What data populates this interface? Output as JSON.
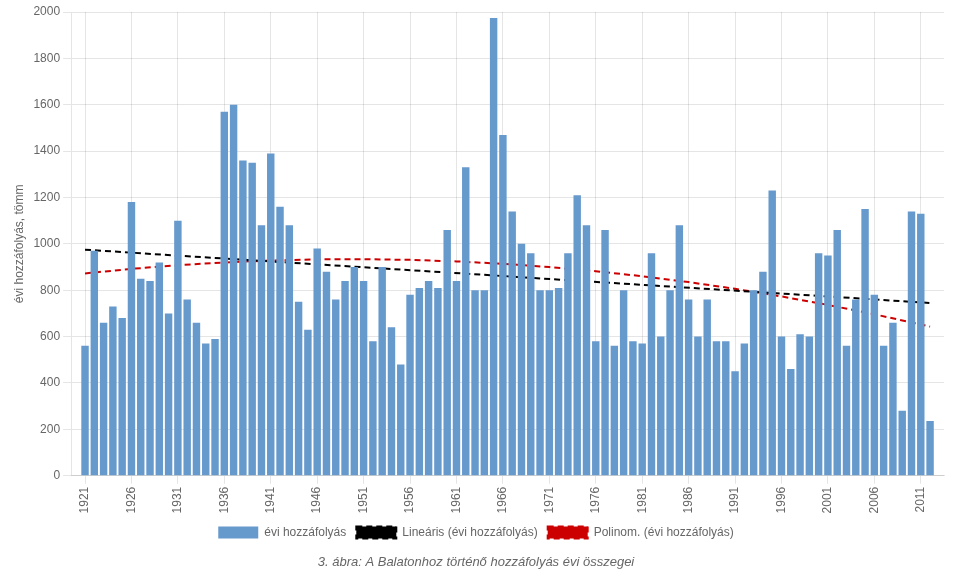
{
  "chart_data": {
    "type": "bar",
    "ylabel": "évi hozzáfolyás, tömm",
    "caption": "3. ábra: A Balatonhoz történő hozzáfolyás évi összegei",
    "x": [
      1921,
      1922,
      1923,
      1924,
      1925,
      1926,
      1927,
      1928,
      1929,
      1930,
      1931,
      1932,
      1933,
      1934,
      1935,
      1936,
      1937,
      1938,
      1939,
      1940,
      1941,
      1942,
      1943,
      1944,
      1945,
      1946,
      1947,
      1948,
      1949,
      1950,
      1951,
      1952,
      1953,
      1954,
      1955,
      1956,
      1957,
      1958,
      1959,
      1960,
      1961,
      1962,
      1963,
      1964,
      1965,
      1966,
      1967,
      1968,
      1969,
      1970,
      1971,
      1972,
      1973,
      1974,
      1975,
      1976,
      1977,
      1978,
      1979,
      1980,
      1981,
      1982,
      1983,
      1984,
      1985,
      1986,
      1987,
      1988,
      1989,
      1990,
      1991,
      1992,
      1993,
      1994,
      1995,
      1996,
      1997,
      1998,
      1999,
      2000,
      2001,
      2002,
      2003,
      2004,
      2005,
      2006,
      2007,
      2008,
      2009,
      2010,
      2011,
      2012
    ],
    "series": [
      {
        "name": "évi hozzáfolyás",
        "type": "bar",
        "color": "#6699cc",
        "values": [
          560,
          970,
          660,
          730,
          680,
          1180,
          850,
          840,
          920,
          700,
          1100,
          760,
          660,
          570,
          590,
          1570,
          1600,
          1360,
          1350,
          1080,
          1390,
          1160,
          1080,
          750,
          630,
          980,
          880,
          760,
          840,
          900,
          840,
          580,
          900,
          640,
          480,
          780,
          810,
          840,
          810,
          1060,
          840,
          1330,
          800,
          800,
          1974,
          1470,
          1140,
          1000,
          960,
          800,
          800,
          810,
          960,
          1210,
          1080,
          580,
          1060,
          560,
          800,
          580,
          570,
          960,
          600,
          800,
          1080,
          760,
          600,
          760,
          580,
          580,
          450,
          570,
          800,
          880,
          1230,
          600,
          460,
          610,
          600,
          960,
          950,
          1060,
          560,
          760,
          1150,
          780,
          560,
          660,
          280,
          1140,
          1130,
          236
        ]
      },
      {
        "name": "Lineáris (évi hozzáfolyás)",
        "type": "line",
        "color": "#000000",
        "line_style": "dashed",
        "marker": "none",
        "x": [
          1921,
          2012
        ],
        "values": [
          974.63,
          745.15
        ]
      },
      {
        "name": "Polinom. (évi hozzáfolyás)",
        "type": "line",
        "color": "#cc0000",
        "line_style": "dashed",
        "marker": "none",
        "x": [
          1921,
          1926,
          1931,
          1936,
          1941,
          1946,
          1951,
          1956,
          1961,
          1966,
          1971,
          1976,
          1981,
          1986,
          1991,
          1996,
          2001,
          2006,
          2011,
          2012
        ],
        "values": [
          872.45,
          892.03,
          907.87,
          919.96,
          928.31,
          932.92,
          933.79,
          930.91,
          924.29,
          913.93,
          899.82,
          881.97,
          860.38,
          835.04,
          805.97,
          773.15,
          736.58,
          696.28,
          652.23,
          642.97
        ]
      }
    ],
    "xlim": [
      1919.5,
      2013.5
    ],
    "xticks": [
      1921,
      1926,
      1931,
      1936,
      1941,
      1946,
      1951,
      1956,
      1961,
      1966,
      1971,
      1976,
      1981,
      1986,
      1991,
      1996,
      2001,
      2006,
      2011
    ],
    "ylim": [
      0,
      2000
    ],
    "yticks": [
      0,
      200,
      400,
      600,
      800,
      1000,
      1200,
      1400,
      1600,
      1800,
      2000
    ],
    "grid": true,
    "legend": "bottom"
  }
}
